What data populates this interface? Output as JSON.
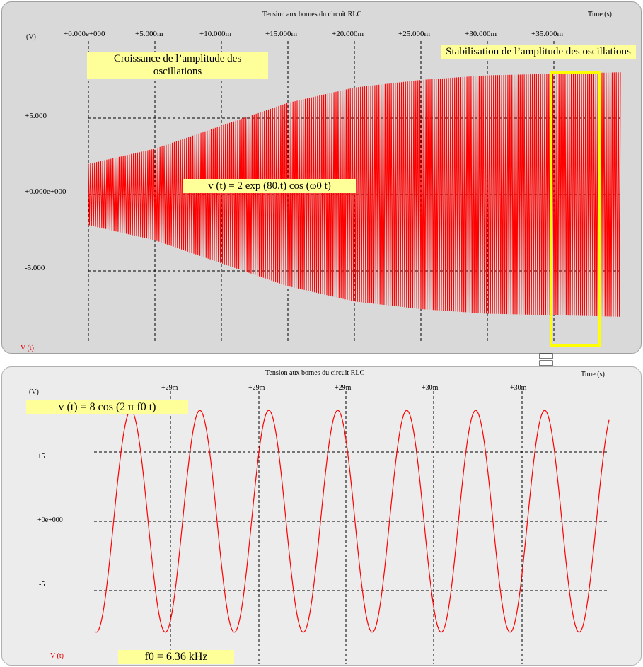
{
  "colors": {
    "signal": "#ff0000",
    "highlight_box": "#ffff00",
    "note_bg": "#ffff99"
  },
  "panel_top": {
    "title": "Tension aux bornes du circuit RLC",
    "time_label": "Time   (s)",
    "y_unit": "(V)",
    "trace_label": "V (t)",
    "x_ticks": [
      "+0.000e+000",
      "+5.000m",
      "+10.000m",
      "+15.000m",
      "+20.000m",
      "+25.000m",
      "+30.000m",
      "+35.000m"
    ],
    "y_ticks": [
      "+5.000",
      "+0.000e+000",
      "-5.000"
    ],
    "note_growth": "Croissance de l’amplitude des oscillations",
    "note_stable": "Stabilisation de l’amplitude des oscillations",
    "formula": "v (t) = 2 exp (80.t) cos (ω0 t)"
  },
  "panel_bottom": {
    "title": "Tension aux bornes du circuit RLC",
    "time_label": "Time   (s)",
    "y_unit": "(V)",
    "trace_label": "V (t)",
    "x_ticks": [
      "+29m",
      "+29m",
      "+29m",
      "+30m",
      "+30m"
    ],
    "y_ticks": [
      "+5",
      "+0e+000",
      "-5"
    ],
    "formula": "v (t) = 8 cos (2 π f0 t)",
    "freq": "f0 = 6.36 kHz"
  },
  "chart_data": [
    {
      "type": "line",
      "title": "Tension aux bornes du circuit RLC",
      "xlabel": "Time   (s)",
      "ylabel": "(V)",
      "xlim": [
        0,
        0.04
      ],
      "ylim": [
        -8.5,
        8.5
      ],
      "grid": true,
      "series": [
        {
          "name": "V (t)",
          "envelope_x": [
            0,
            0.005,
            0.01,
            0.015,
            0.02,
            0.025,
            0.03,
            0.035,
            0.04
          ],
          "envelope_y": [
            2.0,
            3.0,
            4.5,
            6.0,
            7.0,
            7.5,
            7.8,
            7.9,
            8.0
          ]
        }
      ]
    },
    {
      "type": "line",
      "title": "Tension aux bornes du circuit RLC",
      "xlabel": "Time   (s)",
      "ylabel": "(V)",
      "ylim": [
        -8,
        8
      ],
      "grid": true,
      "amplitude": 8,
      "frequency_hz": 6360,
      "cycles_visible": 6.5,
      "series": [
        {
          "name": "V (t)"
        }
      ]
    }
  ]
}
